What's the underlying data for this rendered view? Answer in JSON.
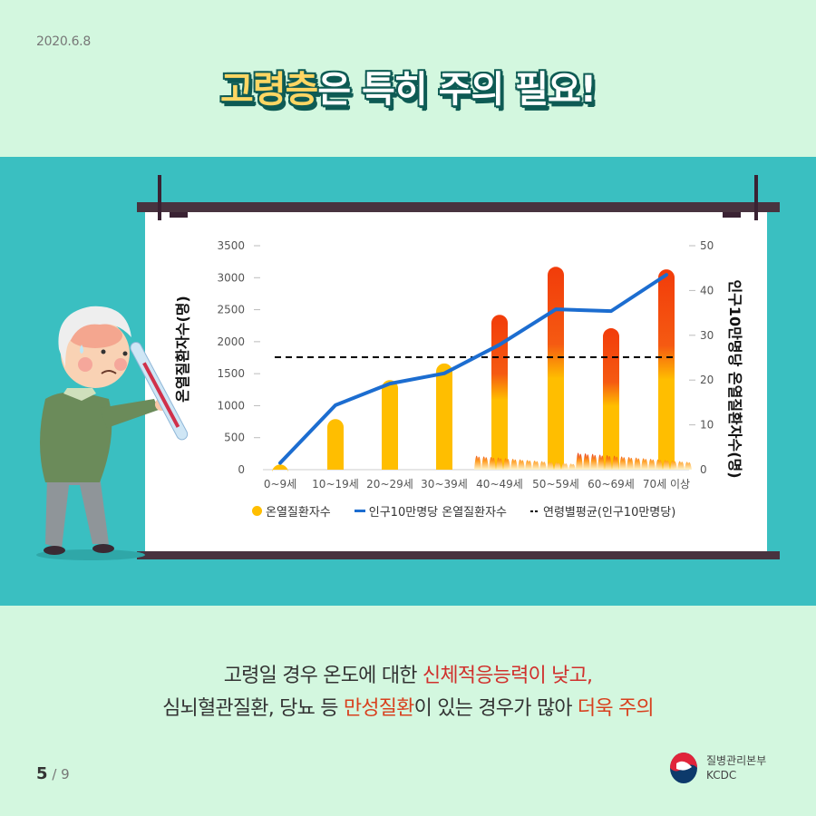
{
  "header": {
    "date": "2020.6.8",
    "title_highlight": "고령층",
    "title_rest": "은 특히 주의 필요!"
  },
  "chart_data": {
    "type": "bar",
    "title": "",
    "categories": [
      "0~9세",
      "10~19세",
      "20~29세",
      "30~39세",
      "40~49세",
      "50~59세",
      "60~69세",
      "70세 이상"
    ],
    "series": [
      {
        "name": "온열질환자수",
        "type": "bar",
        "axis": "left",
        "color": "#ffbe00",
        "values": [
          80,
          790,
          1400,
          1660,
          2420,
          3170,
          2210,
          3130
        ]
      },
      {
        "name": "인구10만명당 온열질환자수",
        "type": "line",
        "axis": "right",
        "color": "#1c6dd0",
        "values": [
          1.5,
          14.4,
          19.2,
          21.5,
          27.9,
          35.8,
          35.4,
          43.5
        ]
      },
      {
        "name": "연령별평균(인구10만명당)",
        "type": "dashed-line",
        "axis": "right",
        "color": "#000000",
        "values": [
          25.1
        ]
      }
    ],
    "ylabel": "온열질환자수(명)",
    "ylabel_right": "인구10만명당 온열질환자수(명)",
    "ylim": [
      0,
      3500
    ],
    "yticks": [
      0,
      500,
      1000,
      1500,
      2000,
      2500,
      3000,
      3500
    ],
    "ylim_right": [
      0,
      50
    ],
    "yticks_right": [
      0,
      10,
      20,
      30,
      40,
      50
    ],
    "grid": false,
    "legend_position": "bottom"
  },
  "legend": {
    "item1": "온열질환자수",
    "item2": "인구10만명당 온열질환자수",
    "item3": "연령별평균(인구10만명당)"
  },
  "description": {
    "line1_a": "고령일 경우 온도에 대한 ",
    "line1_b": "신체적응능력이 낮고,",
    "line2_a": "심뇌혈관질환, 당뇨 등 ",
    "line2_b": "만성질환",
    "line2_c": "이 있는 경우가 많아 ",
    "line2_d": "더욱 주의"
  },
  "footer": {
    "page_current": "5",
    "page_total": "/ 9",
    "org_name": "질병관리본부",
    "org_abbr": "KCDC"
  }
}
